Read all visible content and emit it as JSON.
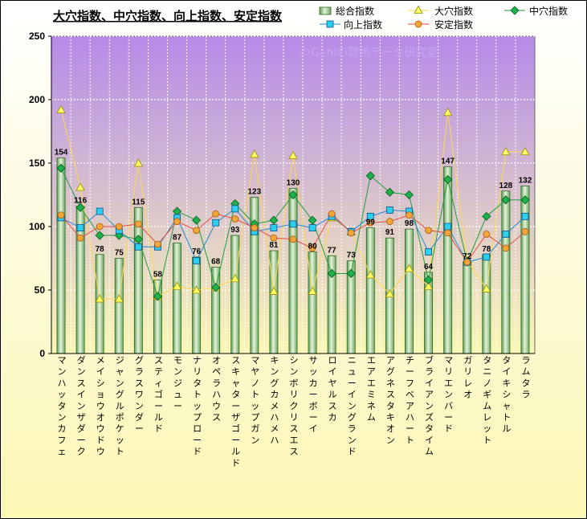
{
  "chart_data": {
    "type": "bar",
    "title": "大穴指数、中穴指数、向上指数、安定指数",
    "watermark": "©Ganiの競馬データ研究室",
    "ylim": [
      0,
      250
    ],
    "yticks": [
      0,
      50,
      100,
      150,
      200,
      250
    ],
    "grid": true,
    "legend_position": "top-right",
    "colors": {
      "background_top": "#b58ae8",
      "background_bottom": "#fbf7b4",
      "outer_top": "#ffffff",
      "outer_bottom": "#fbf7b4",
      "bar_fill": "#a8cf98",
      "bar_stroke": "#2a6a24",
      "oana": "#ffd84a",
      "chuana": "#1e9e3a",
      "kojo": "#1e8cd6",
      "antei": "#e64b3c",
      "grid": "#ffffff"
    },
    "categories": [
      "マンハッタンカフェ",
      "ダンスインザダーク",
      "メイショウオウドウ",
      "ジャングルポケット",
      "グラスワンダー",
      "スティゴールド",
      "モンジュー",
      "ナリタトップロード",
      "オペラハウス",
      "スキャターザゴールド",
      "マヤノトップガン",
      "キングカメハメハ",
      "シンボリクリスエス",
      "サッカーボーイ",
      "ロイヤルスカ",
      "ニューイングランド",
      "エアエミネム",
      "アグネスタキオン",
      "チーフベアハート",
      "ブライアンズタイム",
      "マリエンバード",
      "ガリレオ",
      "タニノギムレット",
      "タイキシャトル",
      "ラムタラ"
    ],
    "series": [
      {
        "name": "総合指数",
        "type": "bar",
        "values": [
          154,
          116,
          78,
          75,
          115,
          58,
          87,
          76,
          68,
          93,
          123,
          81,
          130,
          80,
          77,
          73,
          99,
          91,
          98,
          64,
          147,
          72,
          78,
          128,
          132
        ]
      },
      {
        "name": "大穴指数",
        "type": "line",
        "marker": "triangle",
        "values": [
          192,
          131,
          43,
          43,
          150,
          45,
          53,
          50,
          52,
          59,
          157,
          49,
          156,
          49,
          107,
          96,
          62,
          47,
          67,
          53,
          190,
          73,
          51,
          159,
          159
        ]
      },
      {
        "name": "中穴指数",
        "type": "line",
        "marker": "diamond",
        "values": [
          146,
          115,
          93,
          93,
          90,
          45,
          112,
          105,
          52,
          118,
          102,
          105,
          125,
          105,
          63,
          63,
          140,
          127,
          125,
          58,
          137,
          72,
          108,
          121,
          121
        ]
      },
      {
        "name": "向上指数",
        "type": "line",
        "marker": "square",
        "values": [
          107,
          99,
          112,
          97,
          84,
          84,
          107,
          73,
          103,
          114,
          96,
          99,
          102,
          99,
          108,
          96,
          108,
          113,
          112,
          80,
          100,
          72,
          76,
          94,
          108
        ]
      },
      {
        "name": "安定指数",
        "type": "line",
        "marker": "circle",
        "values": [
          109,
          91,
          100,
          100,
          102,
          86,
          104,
          97,
          110,
          106,
          99,
          91,
          90,
          83,
          110,
          95,
          103,
          104,
          109,
          97,
          95,
          72,
          94,
          83,
          96
        ]
      }
    ]
  }
}
